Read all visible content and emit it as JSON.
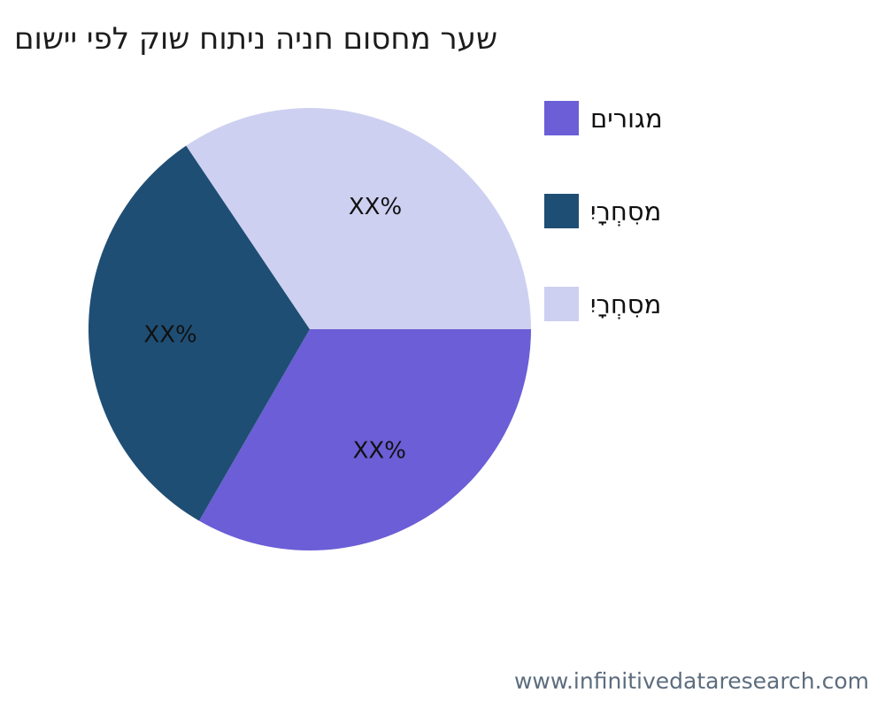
{
  "page": {
    "background": "#ffffff",
    "footer": {
      "text": "www.infinitivedataresearch.com",
      "color": "#5d6d7e"
    }
  },
  "chart_data": {
    "type": "pie",
    "title": "םושיי יפל קוש חותינ הינח םוסחמ רעש",
    "title_color": "#1c1c1c",
    "legend_position": "right",
    "start_angle_deg": 0,
    "direction": "clockwise",
    "label_color": "#111111",
    "slices": [
      {
        "legend_label": "םירוגמ",
        "value": 33.3,
        "percent_label": "XX%",
        "color": "#6b5ed6"
      },
      {
        "legend_label": "יִרָחְסִמ",
        "value": 32.2,
        "percent_label": "XX%",
        "color": "#1f4e74"
      },
      {
        "legend_label": "יִרָחְסִמ",
        "value": 34.4,
        "percent_label": "XX%",
        "color": "#cdd0f0"
      }
    ]
  }
}
